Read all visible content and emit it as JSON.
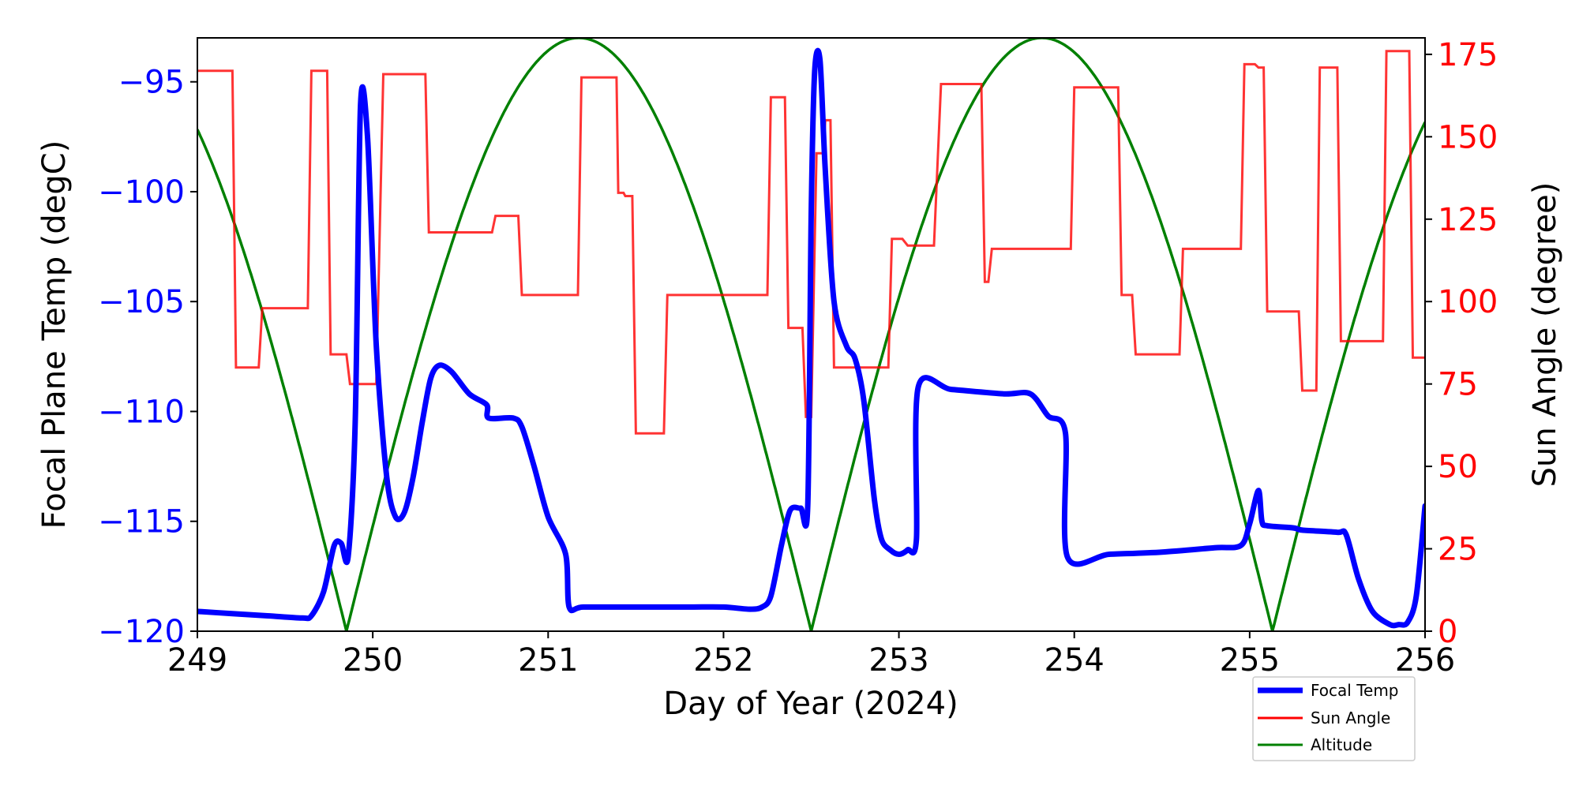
{
  "chart_data": {
    "type": "line",
    "xlabel": "Day of Year (2024)",
    "ylabel_left": "Focal Plane Temp (degC)",
    "ylabel_right": "Sun Angle (degree)",
    "xlim": [
      249,
      256
    ],
    "ylim_left": [
      -120,
      -93
    ],
    "ylim_right": [
      0,
      180
    ],
    "x_ticks": [
      249,
      250,
      251,
      252,
      253,
      254,
      255,
      256
    ],
    "y_left_ticks": [
      -95,
      -100,
      -105,
      -110,
      -115,
      -120
    ],
    "y_right_ticks": [
      175,
      150,
      125,
      100,
      75,
      50,
      25,
      0
    ],
    "y_left_tick_labels": [
      "−95",
      "−100",
      "−105",
      "−110",
      "−115",
      "−120"
    ],
    "legend": {
      "position": "bottom-right-outside"
    },
    "colors": {
      "focal": "#0000ff",
      "sun": "#ff0000",
      "altitude": "#008000",
      "left_axis": "#0000ff",
      "right_axis": "#ff0000"
    },
    "series": [
      {
        "name": "Focal Temp",
        "axis": "left",
        "x": [
          249.0,
          249.2,
          249.4,
          249.6,
          249.65,
          249.72,
          249.78,
          249.82,
          249.86,
          249.9,
          249.93,
          249.97,
          250.02,
          250.08,
          250.13,
          250.18,
          250.23,
          250.28,
          250.33,
          250.38,
          250.45,
          250.55,
          250.65,
          250.66,
          250.8,
          250.85,
          250.92,
          251.0,
          251.1,
          251.12,
          251.2,
          251.5,
          251.8,
          252.0,
          252.15,
          252.22,
          252.27,
          252.33,
          252.38,
          252.44,
          252.48,
          252.5,
          252.52,
          252.55,
          252.58,
          252.63,
          252.7,
          252.75,
          252.8,
          252.86,
          252.9,
          252.95,
          253.0,
          253.05,
          253.1,
          253.11,
          253.3,
          253.6,
          253.75,
          253.85,
          253.95,
          253.96,
          254.2,
          254.5,
          254.8,
          254.95,
          255.0,
          255.05,
          255.07,
          255.1,
          255.25,
          255.3,
          255.5,
          255.55,
          255.62,
          255.7,
          255.8,
          255.85,
          255.9,
          255.95,
          256.0
        ],
        "values": [
          -119.1,
          -119.2,
          -119.3,
          -119.4,
          -119.3,
          -118.2,
          -116.1,
          -116.0,
          -116.6,
          -110.5,
          -96.1,
          -97.5,
          -107.0,
          -113.0,
          -114.8,
          -114.6,
          -113.0,
          -110.6,
          -108.5,
          -107.9,
          -108.2,
          -109.2,
          -109.7,
          -110.3,
          -110.3,
          -110.7,
          -112.5,
          -114.8,
          -116.5,
          -118.9,
          -118.9,
          -118.9,
          -118.9,
          -118.9,
          -119.0,
          -118.9,
          -118.4,
          -116.1,
          -114.5,
          -114.4,
          -114.3,
          -101.0,
          -94.5,
          -94.0,
          -99.0,
          -105.0,
          -107.0,
          -107.6,
          -109.5,
          -114.0,
          -115.8,
          -116.3,
          -116.5,
          -116.3,
          -115.8,
          -108.9,
          -109.0,
          -109.2,
          -109.2,
          -110.2,
          -111.0,
          -116.6,
          -116.5,
          -116.4,
          -116.2,
          -116.1,
          -115.1,
          -113.6,
          -115.0,
          -115.2,
          -115.3,
          -115.4,
          -115.5,
          -115.6,
          -117.6,
          -119.1,
          -119.7,
          -119.7,
          -119.6,
          -118.4,
          -114.3
        ]
      },
      {
        "name": "Sun Angle",
        "axis": "right",
        "x": [
          249.0,
          249.2,
          249.22,
          249.35,
          249.37,
          249.63,
          249.65,
          249.74,
          249.76,
          249.85,
          249.87,
          250.02,
          250.06,
          250.3,
          250.32,
          250.68,
          250.7,
          250.83,
          250.85,
          251.17,
          251.19,
          251.39,
          251.4,
          251.43,
          251.44,
          251.48,
          251.5,
          251.66,
          251.68,
          252.25,
          252.27,
          252.35,
          252.37,
          252.45,
          252.47,
          252.5,
          252.53,
          252.57,
          252.58,
          252.61,
          252.63,
          252.72,
          252.74,
          252.94,
          252.96,
          253.02,
          253.05,
          253.2,
          253.24,
          253.47,
          253.49,
          253.51,
          253.53,
          253.98,
          254.0,
          254.25,
          254.27,
          254.33,
          254.35,
          254.6,
          254.62,
          254.95,
          254.97,
          255.03,
          255.05,
          255.08,
          255.1,
          255.28,
          255.3,
          255.38,
          255.4,
          255.5,
          255.52,
          255.66,
          255.68,
          255.76,
          255.78,
          255.91,
          255.93,
          256.0
        ],
        "values": [
          170,
          170,
          80,
          80,
          98,
          98,
          170,
          170,
          84,
          84,
          75,
          75,
          169,
          169,
          121,
          121,
          126,
          126,
          102,
          102,
          168,
          168,
          133,
          133,
          132,
          132,
          60,
          60,
          102,
          102,
          162,
          162,
          92,
          92,
          65,
          65,
          145,
          145,
          155,
          155,
          80,
          80,
          80,
          80,
          119,
          119,
          117,
          117,
          166,
          166,
          106,
          106,
          116,
          116,
          165,
          165,
          102,
          102,
          84,
          84,
          116,
          116,
          172,
          172,
          171,
          171,
          97,
          97,
          73,
          73,
          171,
          171,
          88,
          88,
          88,
          88,
          176,
          176,
          83,
          83
        ]
      },
      {
        "name": "Altitude",
        "axis": "left",
        "x": [
          249.0,
          249.85,
          251.2,
          252.5,
          253.8,
          255.13,
          256.0
        ],
        "values": [
          -95.5,
          -120,
          -93,
          -120,
          -93,
          -120,
          -95.5
        ]
      }
    ]
  }
}
